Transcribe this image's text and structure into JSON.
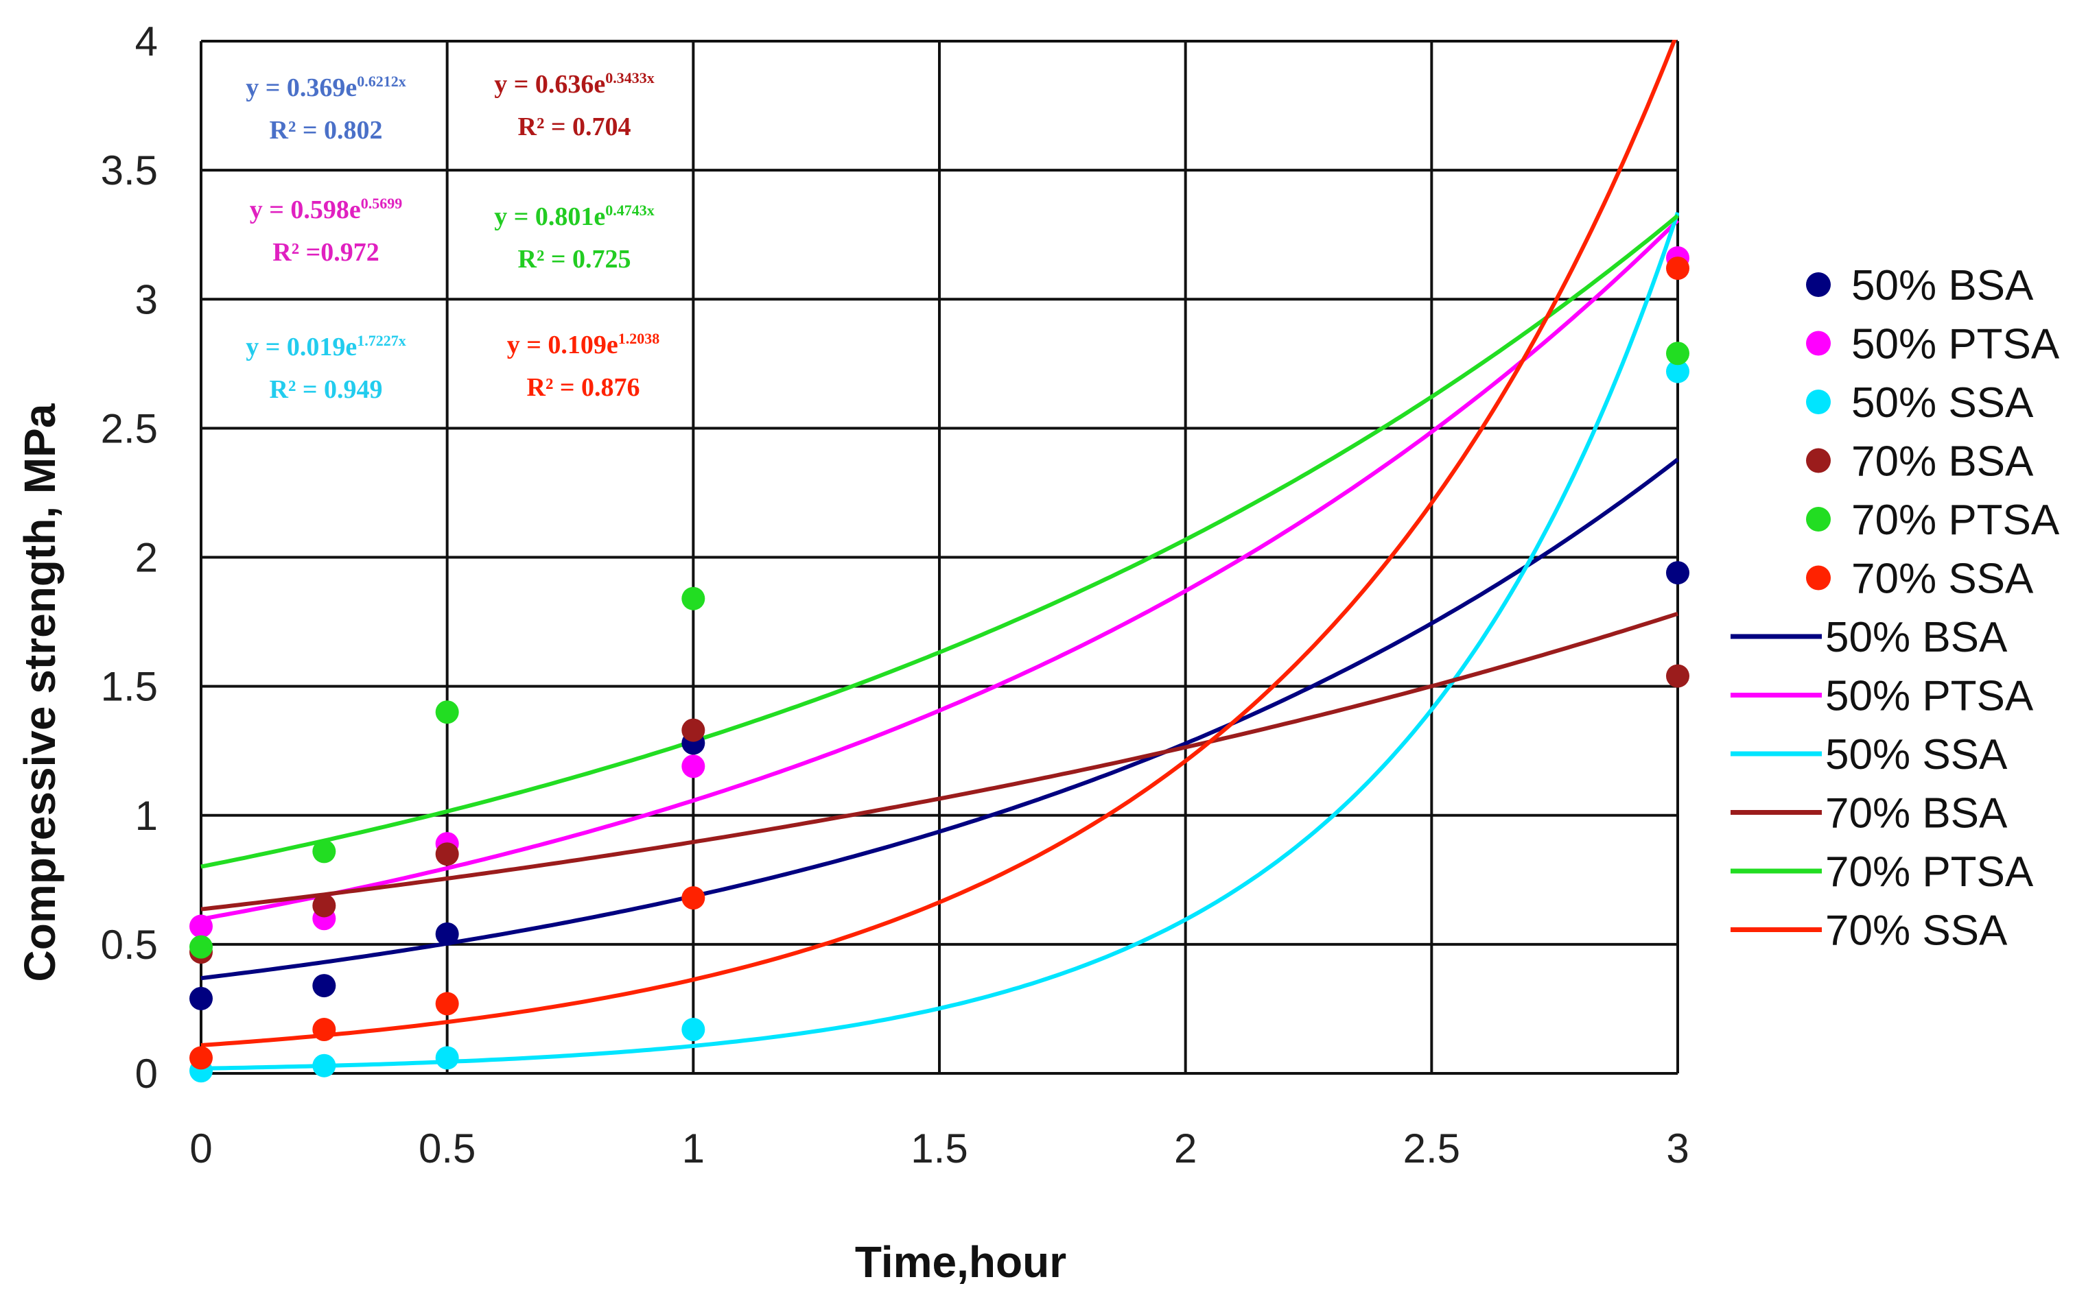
{
  "chart_data": {
    "type": "scatter",
    "title": "",
    "xlabel": "Time,hour",
    "ylabel": "Compressive strength, MPa",
    "xlim": [
      0,
      3
    ],
    "ylim": [
      0,
      4
    ],
    "grid": true,
    "legend_position": "right",
    "x_ticks": [
      0,
      0.5,
      1,
      1.5,
      2,
      2.5,
      3
    ],
    "x_tick_labels": [
      "0",
      "0.5",
      "1",
      "1.5",
      "2",
      "2.5",
      "3"
    ],
    "y_ticks": [
      0,
      0.5,
      1,
      1.5,
      2,
      2.5,
      3,
      3.5,
      4
    ],
    "y_tick_labels": [
      "0",
      "0.5",
      "1",
      "1.5",
      "2",
      "2.5",
      "3",
      "3.5",
      "4"
    ],
    "points_series": [
      {
        "name": "50% BSA",
        "color": "#000080",
        "x": [
          0,
          0.25,
          0.5,
          1,
          3
        ],
        "y": [
          0.29,
          0.34,
          0.54,
          1.28,
          1.94
        ]
      },
      {
        "name": "50% PTSA",
        "color": "#ff00ff",
        "x": [
          0,
          0.25,
          0.5,
          1,
          3
        ],
        "y": [
          0.57,
          0.6,
          0.89,
          1.19,
          3.16
        ]
      },
      {
        "name": "50% SSA",
        "color": "#00e5ff",
        "x": [
          0,
          0.25,
          0.5,
          1,
          3
        ],
        "y": [
          0.01,
          0.03,
          0.06,
          0.17,
          2.72
        ]
      },
      {
        "name": "70% BSA",
        "color": "#9b1c1c",
        "x": [
          0,
          0.25,
          0.5,
          1,
          3
        ],
        "y": [
          0.47,
          0.65,
          0.85,
          1.33,
          1.54
        ]
      },
      {
        "name": "70% PTSA",
        "color": "#22dd22",
        "x": [
          0,
          0.25,
          0.5,
          1,
          3
        ],
        "y": [
          0.49,
          0.86,
          1.4,
          1.84,
          2.79
        ]
      },
      {
        "name": "70% SSA",
        "color": "#ff2200",
        "x": [
          0,
          0.25,
          0.5,
          1,
          3
        ],
        "y": [
          0.06,
          0.17,
          0.27,
          0.68,
          3.12
        ]
      }
    ],
    "trend_series": [
      {
        "name": "50% BSA",
        "color": "#000080",
        "a": 0.369,
        "b": 0.6212,
        "equation": "y = 0.369e",
        "exponent": "0.6212x",
        "r2": "R² = 0.802",
        "label_color": "#4a70c8"
      },
      {
        "name": "50% PTSA",
        "color": "#ff00ff",
        "a": 0.598,
        "b": 0.5699,
        "equation": "y = 0.598e",
        "exponent": "0.5699",
        "r2": "R² =0.972",
        "label_color": "#e020c0"
      },
      {
        "name": "50% SSA",
        "color": "#00e5ff",
        "a": 0.019,
        "b": 1.7227,
        "equation": "y = 0.019e",
        "exponent": "1.7227x",
        "r2": "R² = 0.949",
        "label_color": "#22ccee"
      },
      {
        "name": "70% BSA",
        "color": "#9b1c1c",
        "a": 0.636,
        "b": 0.3433,
        "equation": "y = 0.636e",
        "exponent": "0.3433x",
        "r2": "R² = 0.704",
        "label_color": "#b01818"
      },
      {
        "name": "70% PTSA",
        "color": "#22dd22",
        "a": 0.801,
        "b": 0.4743,
        "equation": "y = 0.801e",
        "exponent": "0.4743x",
        "r2": "R² = 0.725",
        "label_color": "#22cc22"
      },
      {
        "name": "70% SSA",
        "color": "#ff2200",
        "a": 0.109,
        "b": 1.2038,
        "equation": "y = 0.109e",
        "exponent": "1.2038",
        "r2": "R² = 0.876",
        "label_color": "#ff2200"
      }
    ]
  }
}
